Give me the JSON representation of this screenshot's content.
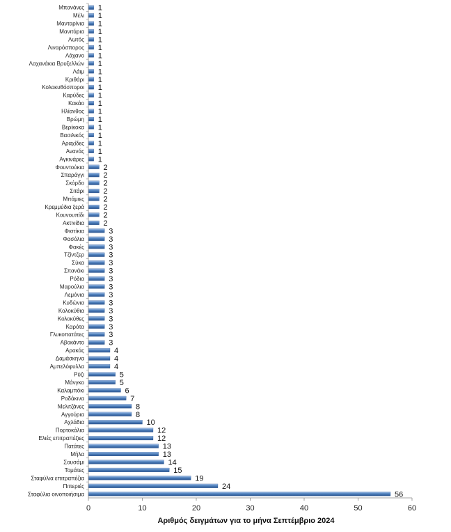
{
  "chart_data": {
    "type": "bar",
    "orientation": "horizontal",
    "categories": [
      "Μπανάνες",
      "Μέλι",
      "Μανταρίνια",
      "Μανιτάρια",
      "Λωτός",
      "Λιναρόσπορος",
      "Λάχανο",
      "Λαχανάκια Βρυξελλών",
      "Λάιμ",
      "Κριθάρι",
      "Κολοκυθόσποροι",
      "Καρύδες",
      "Κακάο",
      "Ηλίανθος",
      "Βρώμη",
      "Βερίκοκα",
      "Βασιλικός",
      "Αραχίδες",
      "Ανανάς",
      "Αγκινάρες",
      "Φουντούκια",
      "Σπαράγγι",
      "Σκόρδο",
      "Σιτάρι",
      "Μπάμιες",
      "Κρεμμύδια ξερά",
      "Κουνουπίδι",
      "Ακτινίδια",
      "Φιστίκια",
      "Φασόλια",
      "Φακές",
      "Τζίντζερ",
      "Σύκα",
      "Σπανάκι",
      "Ρόδια",
      "Μαρούλια",
      "Λεμόνια",
      "Κυδώνια",
      "Κολοκύθια",
      "Κολοκύθες",
      "Καρότα",
      "Γλυκοπατάτες",
      "Αβοκάντο",
      "Αρακάς",
      "Δαμάσκηνα",
      "Αμπελόφυλλα",
      "Ρύζι",
      "Μάνγκο",
      "Καλαμπόκι",
      "Ροδάκινα",
      "Μελιτζάνες",
      "Αγγούρια",
      "Αχλάδια",
      "Πορτοκάλια",
      "Ελιές επιτραπέζιες",
      "Πατάτες",
      "Μήλα",
      "Σουσάμι",
      "Τομάτες",
      "Σταφύλια επιτραπέζια",
      "Πιπεριές",
      "Σταφύλια οινοποιήσιμα"
    ],
    "values": [
      1,
      1,
      1,
      1,
      1,
      1,
      1,
      1,
      1,
      1,
      1,
      1,
      1,
      1,
      1,
      1,
      1,
      1,
      1,
      1,
      2,
      2,
      2,
      2,
      2,
      2,
      2,
      2,
      3,
      3,
      3,
      3,
      3,
      3,
      3,
      3,
      3,
      3,
      3,
      3,
      3,
      3,
      3,
      4,
      4,
      4,
      5,
      5,
      6,
      7,
      8,
      8,
      10,
      12,
      12,
      13,
      13,
      14,
      15,
      19,
      24,
      56
    ],
    "xlabel": "Αριθμός δειγμάτων για το μήνα Σεπτέμβριο 2024",
    "xlim": [
      0,
      60
    ],
    "xticks": [
      0,
      10,
      20,
      30,
      40,
      50,
      60
    ],
    "bar_color": "#4f81bd",
    "bar_color_dark": "#2c5590",
    "bar_color_light": "#a9c4ea",
    "grid": false,
    "legend": "none"
  }
}
